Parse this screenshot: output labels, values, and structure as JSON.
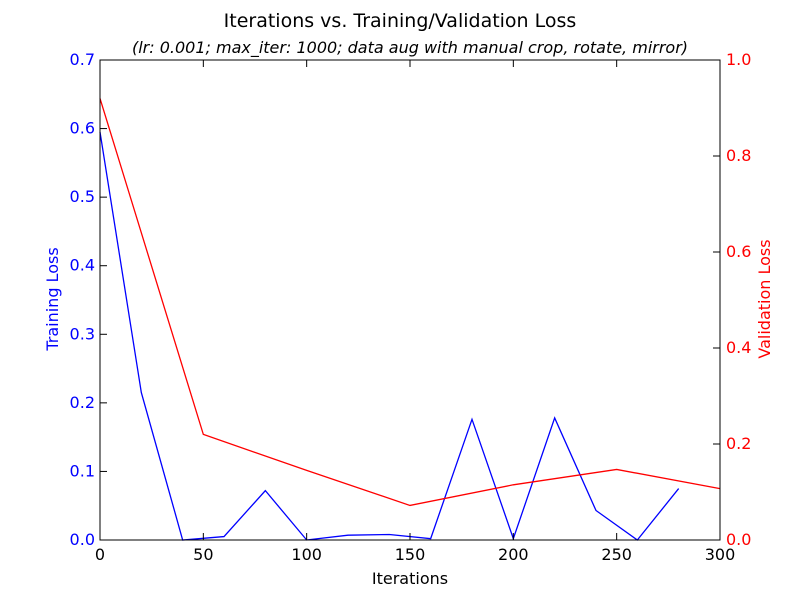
{
  "chart_data": {
    "type": "line",
    "title": "Iterations vs. Training/Validation Loss",
    "subtitle": "(lr: 0.001; max_iter: 1000; data aug with manual crop, rotate, mirror)",
    "xlabel": "Iterations",
    "ylabel_left": "Training Loss",
    "ylabel_right": "Validation Loss",
    "xlim": [
      0,
      300
    ],
    "ylim_left": [
      0,
      0.7
    ],
    "ylim_right": [
      0,
      1.0
    ],
    "x_ticks": [
      "0",
      "50",
      "100",
      "150",
      "200",
      "250",
      "300"
    ],
    "y_left_ticks": [
      "0.0",
      "0.1",
      "0.2",
      "0.3",
      "0.4",
      "0.5",
      "0.6",
      "0.7"
    ],
    "y_right_ticks": [
      "0.0",
      "0.2",
      "0.4",
      "0.6",
      "0.8",
      "1.0"
    ],
    "grid": false,
    "legend": "none",
    "colors": {
      "training": "#0000ff",
      "validation": "#ff0000",
      "axes": "#000000"
    },
    "series": [
      {
        "axis": "left",
        "color": "#0000ff",
        "x": [
          0,
          20,
          40,
          60,
          80,
          100,
          120,
          140,
          160,
          180,
          200,
          220,
          240,
          260,
          280
        ],
        "y": [
          0.595,
          0.215,
          0.0,
          0.005,
          0.072,
          0.0,
          0.007,
          0.008,
          0.002,
          0.176,
          0.002,
          0.178,
          0.043,
          0.0,
          0.075
        ]
      },
      {
        "axis": "right",
        "color": "#ff0000",
        "x": [
          0,
          50,
          100,
          150,
          200,
          250,
          300
        ],
        "y": [
          0.92,
          0.22,
          0.145,
          0.072,
          0.115,
          0.147,
          0.107
        ]
      }
    ]
  }
}
